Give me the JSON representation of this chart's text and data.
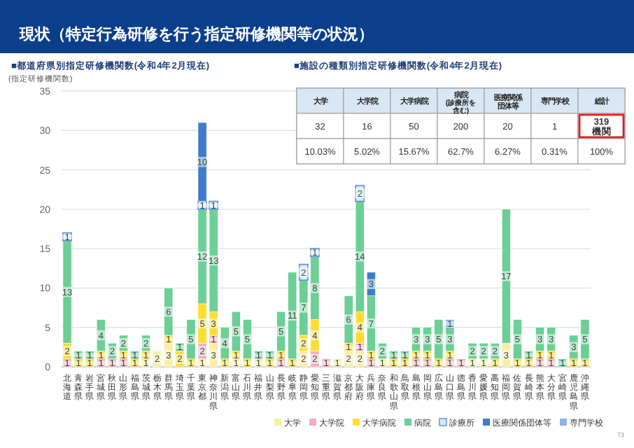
{
  "chart_data": [
    {
      "type": "bar",
      "stacked": true,
      "title": "現状（特定行為研修を行う指定研修機関等の状況）",
      "subtitle": "■都道府県別指定研修機関数(令和4年2月現在)",
      "ylabel": "(指定研修機関数)",
      "categories": [
        "北海道",
        "青森県",
        "岩手県",
        "宮城県",
        "秋田県",
        "山形県",
        "福島県",
        "茨城県",
        "栃木県",
        "群馬県",
        "埼玉県",
        "千葉県",
        "東京都",
        "神奈川県",
        "新潟県",
        "富山県",
        "石川県",
        "福井県",
        "山梨県",
        "長野県",
        "岐阜県",
        "静岡県",
        "愛知県",
        "三重県",
        "滋賀県",
        "京都府",
        "大阪府",
        "兵庫県",
        "奈良県",
        "和歌山県",
        "鳥取県",
        "島根県",
        "岡山県",
        "広島県",
        "山口県",
        "徳島県",
        "香川県",
        "愛媛県",
        "高知県",
        "福岡県",
        "佐賀県",
        "長崎県",
        "熊本県",
        "大分県",
        "宮崎県",
        "鹿児島県",
        "沖縄県"
      ],
      "series": [
        {
          "name": "大学",
          "color": "#fbeea0",
          "values": [
            null,
            null,
            null,
            null,
            null,
            null,
            null,
            1,
            2,
            3,
            null,
            null,
            1,
            3,
            null,
            1,
            null,
            1,
            null,
            null,
            null,
            2,
            null,
            null,
            1,
            2,
            2,
            null,
            1,
            null,
            null,
            null,
            null,
            null,
            null,
            null,
            1,
            1,
            null,
            3,
            null,
            null,
            null,
            null,
            null,
            null,
            null
          ]
        },
        {
          "name": "大学院",
          "color": "#f2aebf",
          "values": [
            1,
            null,
            null,
            1,
            1,
            1,
            null,
            null,
            null,
            null,
            null,
            null,
            2,
            1,
            null,
            null,
            null,
            null,
            null,
            1,
            null,
            null,
            2,
            1,
            null,
            null,
            1,
            1,
            null,
            null,
            null,
            1,
            1,
            null,
            1,
            1,
            null,
            null,
            null,
            null,
            null,
            null,
            1,
            1,
            null,
            null,
            null
          ]
        },
        {
          "name": "大学病院",
          "color": "#ffdd2e",
          "values": [
            2,
            1,
            1,
            1,
            null,
            1,
            1,
            1,
            null,
            1,
            2,
            1,
            5,
            3,
            1,
            1,
            1,
            null,
            1,
            1,
            1,
            2,
            4,
            null,
            null,
            1,
            4,
            1,
            null,
            1,
            1,
            1,
            1,
            1,
            1,
            null,
            null,
            null,
            1,
            null,
            1,
            1,
            1,
            1,
            null,
            1,
            1
          ]
        },
        {
          "name": "病院",
          "color": "#6ccf95",
          "values": [
            13,
            1,
            1,
            4,
            2,
            2,
            1,
            2,
            null,
            6,
            1,
            5,
            12,
            13,
            4,
            5,
            5,
            1,
            1,
            5,
            11,
            7,
            8,
            null,
            null,
            6,
            14,
            7,
            2,
            1,
            1,
            3,
            3,
            5,
            3,
            null,
            2,
            2,
            2,
            17,
            5,
            1,
            3,
            3,
            1,
            3,
            5
          ]
        },
        {
          "name": "診療所",
          "color": "#dce9f8",
          "values": [
            1,
            null,
            null,
            null,
            null,
            null,
            null,
            null,
            null,
            null,
            null,
            null,
            1,
            1,
            null,
            null,
            null,
            null,
            null,
            null,
            null,
            2,
            1,
            null,
            null,
            null,
            2,
            null,
            null,
            null,
            null,
            null,
            null,
            null,
            null,
            null,
            null,
            null,
            null,
            null,
            null,
            null,
            null,
            null,
            null,
            null,
            null
          ]
        },
        {
          "name": "医療関係団体等",
          "color": "#3f7cc9",
          "values": [
            null,
            null,
            null,
            null,
            null,
            null,
            null,
            null,
            null,
            null,
            null,
            null,
            10,
            null,
            null,
            null,
            null,
            null,
            null,
            null,
            null,
            null,
            null,
            null,
            null,
            null,
            null,
            3,
            null,
            null,
            null,
            null,
            null,
            null,
            null,
            null,
            null,
            null,
            null,
            null,
            null,
            null,
            null,
            null,
            null,
            null,
            null
          ]
        },
        {
          "name": "専門学校",
          "color": "#8fb3e2",
          "values": [
            null,
            null,
            null,
            null,
            null,
            null,
            null,
            null,
            null,
            null,
            null,
            null,
            null,
            null,
            null,
            null,
            null,
            null,
            null,
            null,
            null,
            null,
            null,
            null,
            null,
            null,
            null,
            null,
            null,
            null,
            null,
            null,
            null,
            null,
            1,
            null,
            null,
            null,
            null,
            null,
            null,
            null,
            null,
            null,
            null,
            null,
            null
          ]
        }
      ],
      "ylim": [
        0,
        35
      ],
      "yticks": [
        0,
        5,
        10,
        15,
        20,
        25,
        30,
        35
      ],
      "grid": "y",
      "legend": "bottom",
      "data_labels": true,
      "annotations": [
        "73"
      ]
    },
    {
      "type": "other",
      "title": "■施設の種類別指定研修機関数(令和4年2月現在)",
      "categories": [
        "大学",
        "大学院",
        "大学病院",
        "病院(診療所を含む)",
        "医療関係団体等",
        "専門学校",
        "総計"
      ],
      "values": [
        32,
        16,
        50,
        200,
        20,
        1,
        319
      ],
      "value_labels": [
        "32",
        "16",
        "50",
        "200",
        "20",
        "1",
        "319機関"
      ],
      "annotations": [
        "10.03%",
        "5.02%",
        "15.67%",
        "62.7%",
        "6.27%",
        "0.31%",
        "100%"
      ]
    }
  ]
}
